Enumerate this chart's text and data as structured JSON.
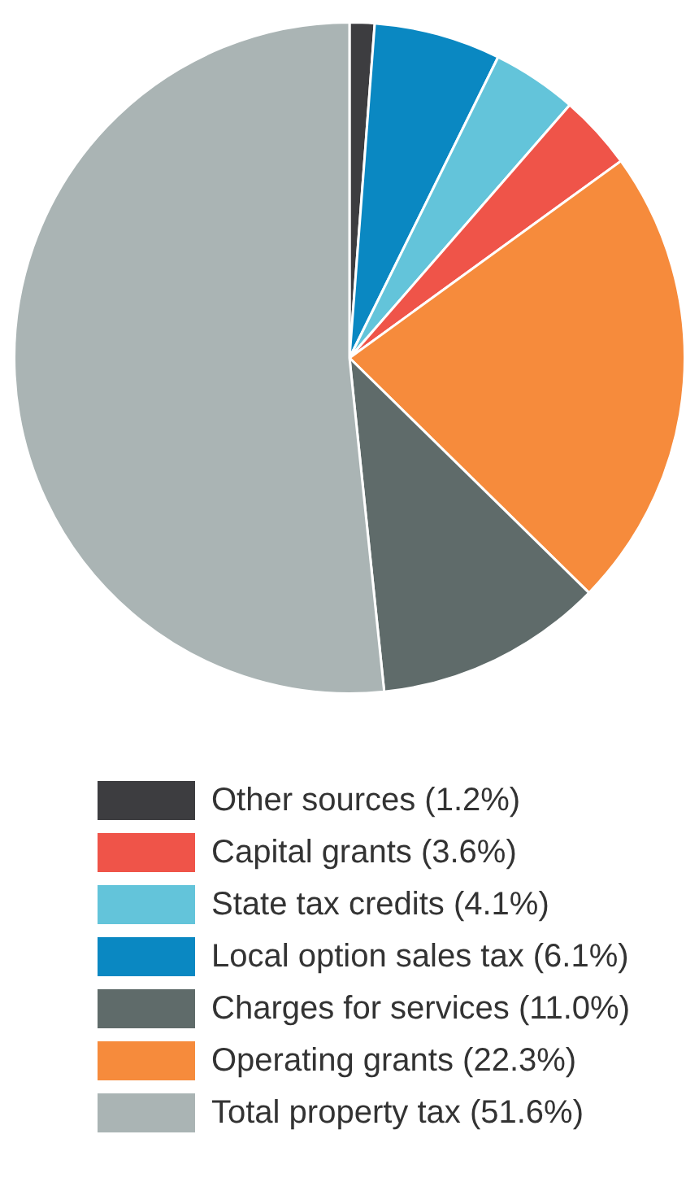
{
  "chart_data": {
    "type": "pie",
    "categories": [
      "Other sources (1.2%)",
      "Local option sales tax (6.1%)",
      "State tax credits (4.1%)",
      "Capital grants (3.6%)",
      "Operating grants (22.3%)",
      "Charges for services (11.0%)",
      "Total property tax (51.6%)"
    ],
    "values": [
      1.2,
      6.1,
      4.1,
      3.6,
      22.3,
      11.0,
      51.6
    ],
    "colors": [
      "#3d3d40",
      "#0a88c2",
      "#63c4da",
      "#ef5449",
      "#f68b3c",
      "#5f6b6a",
      "#aab4b4"
    ],
    "legend": "bottom"
  }
}
